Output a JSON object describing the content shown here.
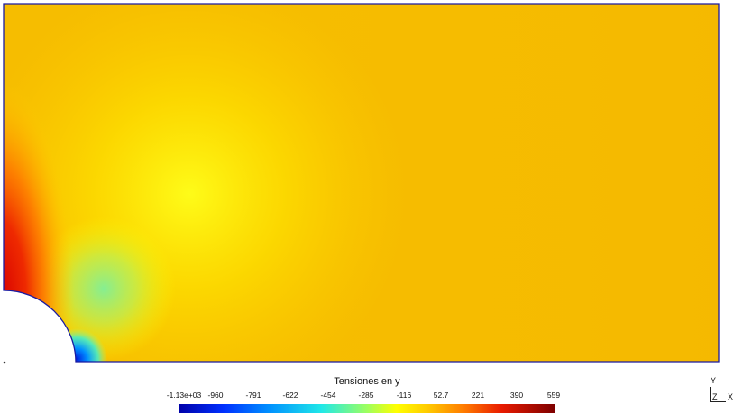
{
  "colors": {
    "field_base": "#f5b700",
    "field_bright": "#ffe600",
    "hot_edge": "#e83a14",
    "cold_tip": "#0057ff",
    "green_zone": "#9be37d",
    "outline": "#1a1aa0"
  },
  "visualization": {
    "title": "Tensiones en y",
    "ticks": [
      "-1.13e+03",
      "-960",
      "-791",
      "-622",
      "-454",
      "-285",
      "-116",
      "52.7",
      "221",
      "390",
      "559"
    ],
    "range": [
      -1130,
      559
    ],
    "colormap": "rainbow (blue → cyan → green → yellow → orange → red → dark red)"
  },
  "axes_triad": {
    "y_label": "Y",
    "z_label": "Z",
    "x_label": "X"
  }
}
